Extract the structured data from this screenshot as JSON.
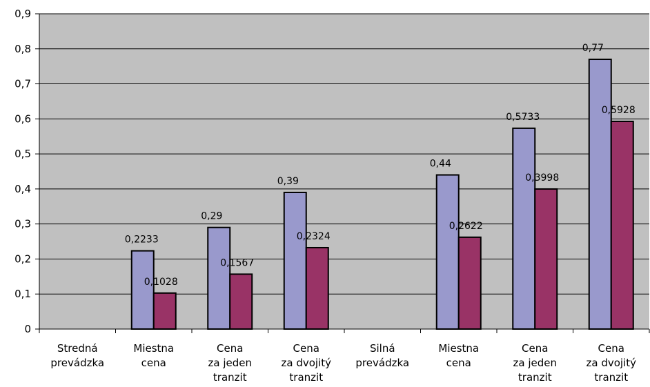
{
  "chart_data": {
    "type": "bar",
    "categories": [
      [
        "Stredná",
        "prevádzka"
      ],
      [
        "Miestna",
        "cena"
      ],
      [
        "Cena",
        "za jeden",
        "tranzit"
      ],
      [
        "Cena",
        "za dvojitý",
        "tranzit"
      ],
      [
        "Silná",
        "prevádzka"
      ],
      [
        "Miestna",
        "cena"
      ],
      [
        "Cena",
        "za jeden",
        "tranzit"
      ],
      [
        "Cena",
        "za dvojitý",
        "tranzit"
      ]
    ],
    "series": [
      {
        "values": [
          null,
          0.2233,
          0.29,
          0.39,
          null,
          0.44,
          0.5733,
          0.77
        ],
        "labels": [
          "",
          "0,2233",
          "0,29",
          "0,39",
          "",
          "0,44",
          "0,5733",
          "0,77"
        ]
      },
      {
        "values": [
          null,
          0.1028,
          0.1567,
          0.2324,
          null,
          0.2622,
          0.3998,
          0.5928
        ],
        "labels": [
          "",
          "0,1028",
          "0,1567",
          "0,2324",
          "",
          "0,2622",
          "0,3998",
          "0,5928"
        ]
      }
    ],
    "ylim": [
      0,
      0.9
    ],
    "yticks": [
      "0",
      "0,1",
      "0,2",
      "0,3",
      "0,4",
      "0,5",
      "0,6",
      "0,7",
      "0,8",
      "0,9"
    ],
    "grid": true,
    "colors": {
      "plot_background": "#c0c0c0",
      "series1": "#9999cc",
      "series2": "#993366",
      "gridline": "#000000",
      "bar_outline": "#000000"
    }
  }
}
